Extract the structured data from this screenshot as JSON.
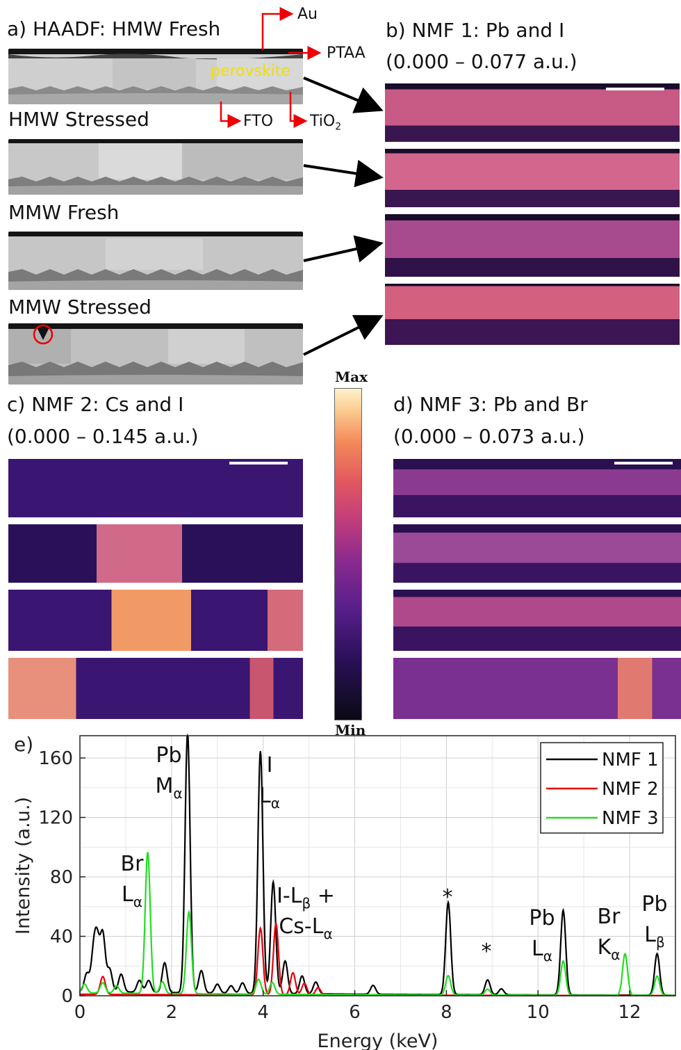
{
  "panel_a": {
    "title": "a) HAADF: HMW Fresh",
    "rows": [
      "HMW Stressed",
      "MMW Fresh",
      "MMW Stressed"
    ],
    "annotations": {
      "au": "Au",
      "ptaa": "PTAA",
      "perovskite": "perovskite",
      "fto": "FTO",
      "tio2_base": "TiO",
      "tio2_sub": "2"
    }
  },
  "panel_b": {
    "title": "b) NMF 1: Pb and I",
    "range": "(0.000 – 0.077 a.u.)"
  },
  "panel_c": {
    "title": "c) NMF 2: Cs and I",
    "range": "(0.000 – 0.145 a.u.)"
  },
  "panel_d": {
    "title": "d) NMF 3: Pb and Br",
    "range": "(0.000 – 0.073 a.u.)"
  },
  "colorbar": {
    "max": "Max",
    "min": "Min"
  },
  "colors": {
    "nmf1": "#000000",
    "nmf2": "#e8000b",
    "nmf3": "#22dd22",
    "annotation_arrow": "#e00000",
    "perovskite_label": "#f0e000"
  },
  "chart_data": {
    "type": "line",
    "panel_label": "e)",
    "xlabel": "Energy (keV)",
    "ylabel": "Intensity (a.u.)",
    "xlim": [
      0,
      13
    ],
    "ylim": [
      0,
      175
    ],
    "xticks": [
      0,
      2,
      4,
      6,
      8,
      10,
      12
    ],
    "yticks": [
      0,
      40,
      80,
      120,
      160
    ],
    "grid": true,
    "legend_position": "top-right",
    "series": [
      {
        "name": "NMF 1",
        "color": "#000000",
        "peaks": [
          [
            0.15,
            12
          ],
          [
            0.3,
            25
          ],
          [
            0.38,
            30
          ],
          [
            0.5,
            38
          ],
          [
            0.65,
            15
          ],
          [
            0.9,
            12
          ],
          [
            1.3,
            8
          ],
          [
            1.5,
            8
          ],
          [
            1.85,
            20
          ],
          [
            2.35,
            175
          ],
          [
            2.65,
            15
          ],
          [
            3.0,
            6
          ],
          [
            3.3,
            5
          ],
          [
            3.55,
            7
          ],
          [
            3.94,
            163
          ],
          [
            4.22,
            75
          ],
          [
            4.48,
            22
          ],
          [
            4.85,
            12
          ],
          [
            5.15,
            8
          ],
          [
            6.4,
            6
          ],
          [
            8.04,
            62
          ],
          [
            8.9,
            10
          ],
          [
            9.2,
            4
          ],
          [
            10.55,
            57
          ],
          [
            12.6,
            28
          ]
        ],
        "baseline": 3
      },
      {
        "name": "NMF 2",
        "color": "#e8000b",
        "peaks": [
          [
            0.5,
            12
          ],
          [
            3.94,
            45
          ],
          [
            4.28,
            48
          ],
          [
            4.65,
            15
          ],
          [
            4.9,
            8
          ],
          [
            5.2,
            5
          ]
        ],
        "baseline": 1
      },
      {
        "name": "NMF 3",
        "color": "#22dd22",
        "peaks": [
          [
            0.1,
            6
          ],
          [
            0.5,
            7
          ],
          [
            0.8,
            5
          ],
          [
            1.48,
            95
          ],
          [
            1.8,
            8
          ],
          [
            2.38,
            55
          ],
          [
            3.9,
            10
          ],
          [
            4.2,
            8
          ],
          [
            8.04,
            13
          ],
          [
            8.9,
            4
          ],
          [
            10.55,
            23
          ],
          [
            11.9,
            28
          ],
          [
            12.6,
            13
          ]
        ],
        "baseline": 2
      }
    ],
    "annotations": [
      {
        "lines": [
          "Pb",
          "Mα"
        ]
      },
      {
        "lines": [
          "I",
          "Lα"
        ]
      },
      {
        "lines": [
          "Br",
          "Lα"
        ]
      },
      {
        "lines": [
          "I-Lβ +",
          "Cs-Lα"
        ]
      },
      {
        "lines": [
          "*"
        ]
      },
      {
        "lines": [
          "*"
        ]
      },
      {
        "lines": [
          "Pb",
          "Lα"
        ]
      },
      {
        "lines": [
          "Br",
          "Kα"
        ]
      },
      {
        "lines": [
          "Pb",
          "Lβ"
        ]
      }
    ]
  }
}
